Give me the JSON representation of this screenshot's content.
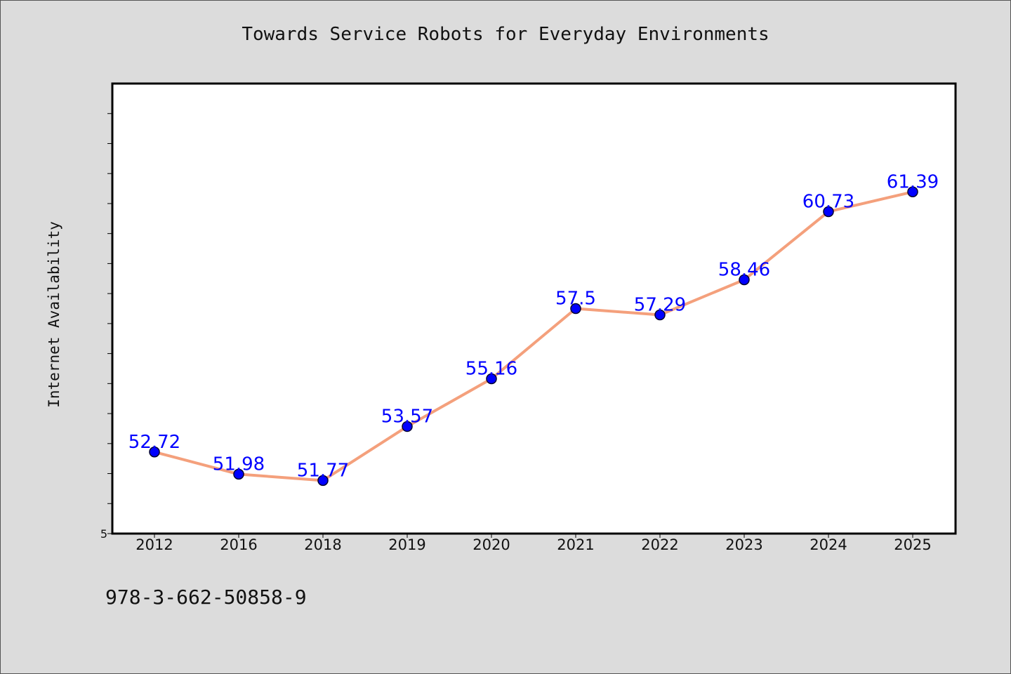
{
  "chart_data": {
    "type": "line",
    "title": "Towards Service Robots for Everyday Environments",
    "xlabel": "",
    "ylabel": "Internet Availability",
    "categories": [
      "2012",
      "2016",
      "2018",
      "2019",
      "2020",
      "2021",
      "2022",
      "2023",
      "2024",
      "2025"
    ],
    "series": [
      {
        "values": [
          52.72,
          51.98,
          51.77,
          53.57,
          55.16,
          57.5,
          57.29,
          58.46,
          60.73,
          61.39
        ],
        "value_labels": [
          "52.72",
          "51.98",
          "51.77",
          "53.57",
          "55.16",
          "57.5",
          "57.29",
          "58.46",
          "60.73",
          "61.39"
        ]
      }
    ],
    "ylim": [
      50.0,
      65.0
    ],
    "y_tick_labels": [
      "5"
    ],
    "grid": false,
    "legend": "none"
  },
  "footer": {
    "isbn": "978-3-662-50858-9"
  },
  "colors": {
    "background": "#dcdcdc",
    "plot_area": "#ffffff",
    "line": "#f4a07c",
    "marker": "#0000ff",
    "data_label": "#0000ff"
  }
}
